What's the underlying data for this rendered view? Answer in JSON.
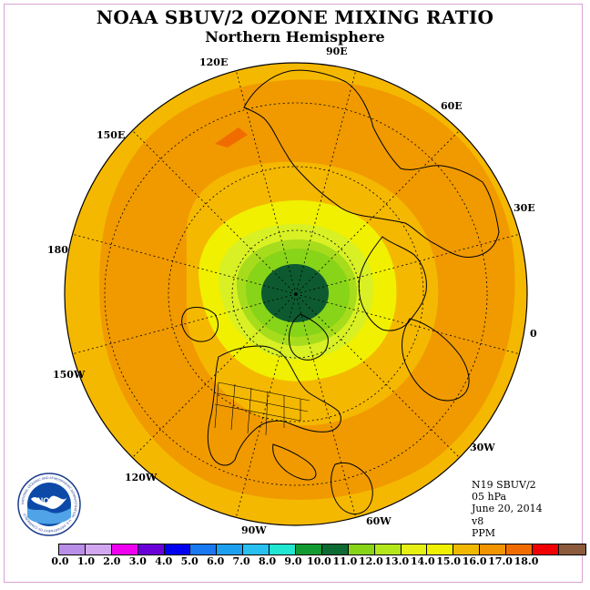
{
  "title": "NOAA SBUV/2 OZONE MIXING RATIO",
  "subtitle": "Northern Hemisphere",
  "longitude_labels": {
    "e120": "120E",
    "e90": "90E",
    "e60": "60E",
    "e150": "150E",
    "e30": "30E",
    "l180": "180",
    "zero": "0",
    "w150": "150W",
    "w30": "30W",
    "w120": "120W",
    "w60": "60W",
    "w90": "90W"
  },
  "info": {
    "satellite": "N19 SBUV/2",
    "pressure": "05 hPa",
    "date": "June 20, 2014",
    "version": "v8",
    "units": "PPM"
  },
  "colorbar": {
    "colors": [
      "#b98ee8",
      "#d3a6f0",
      "#f000f0",
      "#6a00d8",
      "#0000f0",
      "#1a78f0",
      "#1ea0f0",
      "#28c0f0",
      "#20e6d2",
      "#139a32",
      "#0d6a32",
      "#88d418",
      "#b4e61c",
      "#e6f014",
      "#f0f000",
      "#f0b800",
      "#f09400",
      "#f06c00",
      "#f00000",
      "#8c5a3c"
    ],
    "tick_labels": [
      "0.0",
      "1.0",
      "2.0",
      "3.0",
      "4.0",
      "5.0",
      "6.0",
      "7.0",
      "8.0",
      "9.0",
      "10.0",
      "11.0",
      "12.0",
      "13.0",
      "14.0",
      "15.0",
      "16.0",
      "17.0",
      "18.0"
    ]
  },
  "logo": {
    "text": "NOAA",
    "ring_text": "NATIONAL OCEANIC AND ATMOSPHERIC ADMINISTRATION · U.S. DEPARTMENT OF COMMERCE"
  },
  "field_colors": {
    "outer": "#f5b800",
    "band": "#f09a00",
    "warm": "#f06c00",
    "mid": "#e6f014",
    "yellow": "#f0f000",
    "lime": "#b4e61c",
    "green": "#88d418",
    "darkgreen": "#139a32",
    "core": "#0d5a30"
  }
}
